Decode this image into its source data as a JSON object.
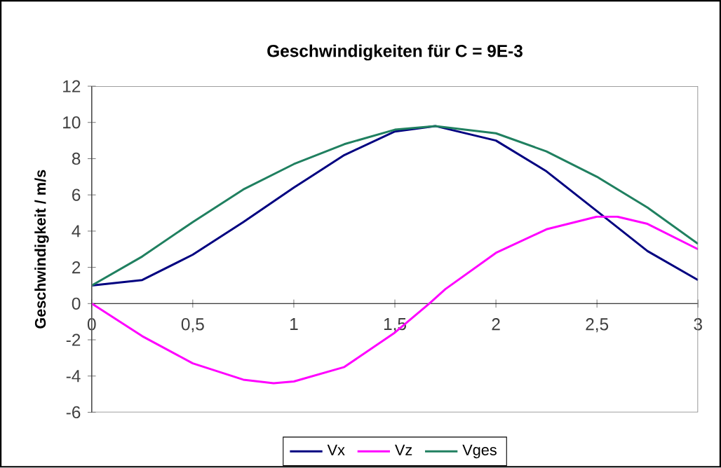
{
  "chart_data": {
    "type": "line",
    "title": "Geschwindigkeiten für C = 9E-3",
    "ylabel": "Geschwindigkeit / m/s",
    "xlim": [
      0,
      3
    ],
    "xticks": [
      0,
      {
        "value": 0.5,
        "label": "0,5"
      },
      1,
      {
        "value": 1.5,
        "label": "1,5"
      },
      2,
      {
        "value": 2.5,
        "label": "2,5"
      },
      3
    ],
    "ylim": [
      -6,
      12
    ],
    "yticks": [
      -6,
      -4,
      -2,
      0,
      2,
      4,
      6,
      8,
      10,
      12
    ],
    "grid": false,
    "legend": "bottom",
    "marker": "none",
    "line_style": "solid",
    "series": [
      {
        "name": "Vx",
        "color": "#000080",
        "x": [
          0,
          0.25,
          0.5,
          0.75,
          1,
          1.25,
          1.5,
          1.7,
          2,
          2.25,
          2.5,
          2.75,
          3
        ],
        "values": [
          1,
          1.3,
          2.7,
          4.5,
          6.4,
          8.2,
          9.5,
          9.8,
          9.0,
          7.3,
          5.1,
          2.9,
          1.3
        ]
      },
      {
        "name": "Vz",
        "color": "#ff00ff",
        "x": [
          0,
          0.25,
          0.5,
          0.75,
          0.9,
          1,
          1.25,
          1.5,
          1.67,
          1.75,
          2,
          2.25,
          2.5,
          2.6,
          2.75,
          3
        ],
        "values": [
          0,
          -1.8,
          -3.3,
          -4.2,
          -4.4,
          -4.3,
          -3.5,
          -1.6,
          0,
          0.8,
          2.8,
          4.1,
          4.8,
          4.8,
          4.4,
          3.0
        ]
      },
      {
        "name": "Vges",
        "color": "#208060",
        "x": [
          0,
          0.25,
          0.5,
          0.75,
          1,
          1.25,
          1.5,
          1.7,
          2,
          2.25,
          2.5,
          2.75,
          3
        ],
        "values": [
          1,
          2.6,
          4.5,
          6.3,
          7.7,
          8.8,
          9.6,
          9.8,
          9.4,
          8.4,
          7.0,
          5.3,
          3.3
        ]
      }
    ]
  }
}
